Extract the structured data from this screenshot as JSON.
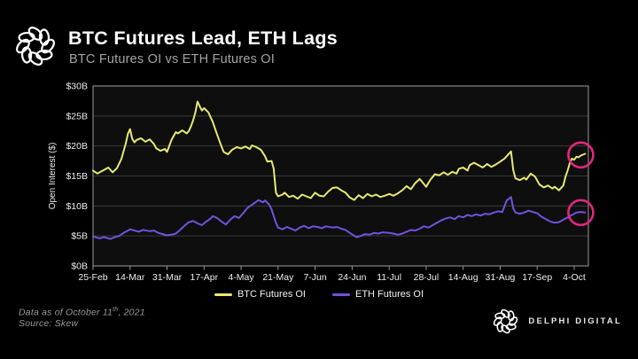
{
  "header": {
    "title": "BTC Futures Lead, ETH Lags",
    "subtitle": "BTC Futures OI vs ETH Futures OI"
  },
  "footer": {
    "note_prefix": "Data as of October 11",
    "note_superscript": "th",
    "note_suffix": ", 2021",
    "source": "Source: Skew",
    "brand": "DELPHI DIGITAL"
  },
  "colors": {
    "background": "#000000",
    "plot_background": "#0e0e0e",
    "grid": "#3a3a3a",
    "axis_border": "#9e9e9e",
    "axis_text": "#ededed",
    "btc_line": "#eae870",
    "eth_line": "#7452dd",
    "highlight_circle": "#e3277d",
    "title_text": "#ffffff",
    "subtitle_text": "#a3a3a3",
    "footnote_text": "#999999"
  },
  "chart_data": {
    "type": "line",
    "title": "BTC Futures OI vs ETH Futures OI",
    "xlabel": "",
    "ylabel": "Open Interest ($)",
    "unit": "$ billions",
    "ylim": [
      0,
      30
    ],
    "ytick_values": [
      0,
      5,
      10,
      15,
      20,
      25,
      30
    ],
    "ytick_labels": [
      "$0B",
      "$5B",
      "$10B",
      "$15B",
      "$20B",
      "$25B",
      "$30B"
    ],
    "xtick_labels": [
      "25-Feb",
      "14-Mar",
      "31-Mar",
      "17-Apr",
      "4-May",
      "21-May",
      "7-Jun",
      "24-Jun",
      "11-Jul",
      "28-Jul",
      "14-Aug",
      "31-Aug",
      "17-Sep",
      "4-Oct"
    ],
    "xtick_days": [
      0,
      17,
      34,
      51,
      68,
      85,
      102,
      119,
      136,
      153,
      170,
      187,
      204,
      221
    ],
    "x_domain_days": [
      0,
      226
    ],
    "grid": "horizontal",
    "legend_position": "bottom",
    "series": [
      {
        "name": "BTC Futures OI",
        "color": "#eae870",
        "points": [
          [
            0,
            15.9
          ],
          [
            2,
            15.4
          ],
          [
            3,
            15.6
          ],
          [
            5,
            16.0
          ],
          [
            7,
            16.4
          ],
          [
            9,
            15.6
          ],
          [
            11,
            16.3
          ],
          [
            13,
            17.8
          ],
          [
            15,
            20.4
          ],
          [
            16,
            22.0
          ],
          [
            17,
            22.8
          ],
          [
            18,
            21.2
          ],
          [
            19,
            20.6
          ],
          [
            20,
            21.0
          ],
          [
            22,
            21.3
          ],
          [
            24,
            20.7
          ],
          [
            26,
            21.1
          ],
          [
            28,
            20.3
          ],
          [
            29,
            19.6
          ],
          [
            31,
            19.2
          ],
          [
            33,
            19.5
          ],
          [
            34,
            19.0
          ],
          [
            36,
            21.0
          ],
          [
            38,
            22.3
          ],
          [
            39,
            22.1
          ],
          [
            41,
            22.6
          ],
          [
            43,
            22.1
          ],
          [
            44,
            22.5
          ],
          [
            45,
            23.3
          ],
          [
            46,
            24.3
          ],
          [
            47,
            25.6
          ],
          [
            48,
            27.4
          ],
          [
            49,
            26.6
          ],
          [
            50,
            25.9
          ],
          [
            51,
            26.3
          ],
          [
            53,
            25.6
          ],
          [
            55,
            24.0
          ],
          [
            57,
            21.9
          ],
          [
            59,
            19.9
          ],
          [
            60,
            19.0
          ],
          [
            62,
            18.6
          ],
          [
            64,
            19.4
          ],
          [
            66,
            19.8
          ],
          [
            68,
            19.6
          ],
          [
            70,
            19.9
          ],
          [
            72,
            19.5
          ],
          [
            73,
            20.1
          ],
          [
            75,
            19.8
          ],
          [
            77,
            19.4
          ],
          [
            79,
            18.3
          ],
          [
            80,
            17.4
          ],
          [
            82,
            17.5
          ],
          [
            83,
            16.2
          ],
          [
            84,
            12.2
          ],
          [
            85,
            11.6
          ],
          [
            87,
            11.9
          ],
          [
            88,
            12.2
          ],
          [
            90,
            11.5
          ],
          [
            92,
            11.7
          ],
          [
            94,
            11.2
          ],
          [
            96,
            11.9
          ],
          [
            98,
            11.6
          ],
          [
            100,
            11.3
          ],
          [
            102,
            12.2
          ],
          [
            104,
            11.7
          ],
          [
            106,
            11.6
          ],
          [
            108,
            12.4
          ],
          [
            110,
            13.0
          ],
          [
            112,
            13.1
          ],
          [
            114,
            12.6
          ],
          [
            116,
            12.2
          ],
          [
            118,
            11.4
          ],
          [
            120,
            11.0
          ],
          [
            122,
            11.8
          ],
          [
            124,
            11.3
          ],
          [
            126,
            12.0
          ],
          [
            128,
            11.6
          ],
          [
            130,
            11.9
          ],
          [
            132,
            11.5
          ],
          [
            134,
            11.7
          ],
          [
            136,
            12.0
          ],
          [
            138,
            11.7
          ],
          [
            140,
            12.1
          ],
          [
            142,
            12.6
          ],
          [
            144,
            13.3
          ],
          [
            146,
            12.8
          ],
          [
            148,
            13.8
          ],
          [
            150,
            14.5
          ],
          [
            151,
            14.1
          ],
          [
            153,
            13.2
          ],
          [
            155,
            14.4
          ],
          [
            157,
            15.3
          ],
          [
            159,
            15.1
          ],
          [
            161,
            15.6
          ],
          [
            163,
            15.2
          ],
          [
            165,
            15.7
          ],
          [
            167,
            15.4
          ],
          [
            168,
            16.2
          ],
          [
            170,
            16.4
          ],
          [
            172,
            15.9
          ],
          [
            173,
            16.8
          ],
          [
            175,
            17.2
          ],
          [
            177,
            16.8
          ],
          [
            179,
            16.4
          ],
          [
            181,
            17.0
          ],
          [
            183,
            16.5
          ],
          [
            185,
            16.9
          ],
          [
            187,
            17.4
          ],
          [
            189,
            17.9
          ],
          [
            190,
            18.3
          ],
          [
            192,
            19.1
          ],
          [
            193,
            16.0
          ],
          [
            194,
            14.6
          ],
          [
            196,
            14.3
          ],
          [
            198,
            14.7
          ],
          [
            199,
            14.4
          ],
          [
            201,
            15.4
          ],
          [
            203,
            14.9
          ],
          [
            205,
            13.6
          ],
          [
            207,
            13.1
          ],
          [
            209,
            13.4
          ],
          [
            211,
            12.9
          ],
          [
            212,
            13.2
          ],
          [
            214,
            12.6
          ],
          [
            216,
            13.4
          ],
          [
            217,
            14.9
          ],
          [
            218,
            15.9
          ],
          [
            219,
            17.2
          ],
          [
            220,
            17.9
          ],
          [
            221,
            17.7
          ],
          [
            222,
            18.2
          ],
          [
            223,
            18.1
          ],
          [
            224,
            18.4
          ],
          [
            226,
            18.7
          ]
        ]
      },
      {
        "name": "ETH Futures OI",
        "color": "#7452dd",
        "points": [
          [
            0,
            4.9
          ],
          [
            2,
            4.7
          ],
          [
            3,
            4.6
          ],
          [
            5,
            4.8
          ],
          [
            8,
            4.5
          ],
          [
            10,
            4.8
          ],
          [
            12,
            5.0
          ],
          [
            14,
            5.5
          ],
          [
            16,
            5.9
          ],
          [
            17,
            6.1
          ],
          [
            19,
            5.9
          ],
          [
            21,
            5.7
          ],
          [
            23,
            6.0
          ],
          [
            26,
            5.8
          ],
          [
            28,
            5.9
          ],
          [
            30,
            5.5
          ],
          [
            32,
            5.3
          ],
          [
            34,
            5.1
          ],
          [
            36,
            5.2
          ],
          [
            38,
            5.4
          ],
          [
            40,
            6.0
          ],
          [
            42,
            6.7
          ],
          [
            44,
            7.3
          ],
          [
            46,
            7.5
          ],
          [
            48,
            7.1
          ],
          [
            50,
            6.8
          ],
          [
            52,
            7.4
          ],
          [
            54,
            7.9
          ],
          [
            55,
            8.3
          ],
          [
            57,
            8.0
          ],
          [
            59,
            7.4
          ],
          [
            61,
            6.9
          ],
          [
            63,
            7.7
          ],
          [
            65,
            8.3
          ],
          [
            67,
            8.0
          ],
          [
            69,
            8.8
          ],
          [
            71,
            9.7
          ],
          [
            73,
            10.2
          ],
          [
            75,
            10.7
          ],
          [
            76,
            11.0
          ],
          [
            78,
            10.6
          ],
          [
            79,
            10.9
          ],
          [
            81,
            10.2
          ],
          [
            82,
            9.4
          ],
          [
            84,
            7.2
          ],
          [
            85,
            6.4
          ],
          [
            87,
            6.1
          ],
          [
            89,
            6.5
          ],
          [
            91,
            6.2
          ],
          [
            93,
            5.9
          ],
          [
            95,
            6.4
          ],
          [
            97,
            6.7
          ],
          [
            99,
            6.3
          ],
          [
            101,
            6.6
          ],
          [
            103,
            6.5
          ],
          [
            105,
            6.3
          ],
          [
            107,
            6.6
          ],
          [
            110,
            6.4
          ],
          [
            112,
            6.5
          ],
          [
            114,
            6.2
          ],
          [
            116,
            6.0
          ],
          [
            118,
            5.5
          ],
          [
            121,
            4.8
          ],
          [
            123,
            5.0
          ],
          [
            125,
            5.3
          ],
          [
            127,
            5.2
          ],
          [
            129,
            5.5
          ],
          [
            131,
            5.4
          ],
          [
            133,
            5.6
          ],
          [
            136,
            5.5
          ],
          [
            138,
            5.4
          ],
          [
            140,
            5.2
          ],
          [
            142,
            5.4
          ],
          [
            144,
            5.7
          ],
          [
            146,
            6.0
          ],
          [
            148,
            5.9
          ],
          [
            150,
            6.2
          ],
          [
            152,
            6.6
          ],
          [
            154,
            6.4
          ],
          [
            156,
            6.8
          ],
          [
            158,
            7.2
          ],
          [
            160,
            7.6
          ],
          [
            162,
            7.9
          ],
          [
            164,
            8.1
          ],
          [
            166,
            7.8
          ],
          [
            168,
            8.3
          ],
          [
            170,
            8.1
          ],
          [
            172,
            8.5
          ],
          [
            174,
            8.3
          ],
          [
            176,
            8.6
          ],
          [
            178,
            8.4
          ],
          [
            180,
            8.7
          ],
          [
            182,
            8.6
          ],
          [
            184,
            8.9
          ],
          [
            186,
            9.1
          ],
          [
            188,
            9.0
          ],
          [
            190,
            10.9
          ],
          [
            192,
            11.5
          ],
          [
            193,
            9.6
          ],
          [
            194,
            8.9
          ],
          [
            196,
            8.7
          ],
          [
            198,
            8.9
          ],
          [
            200,
            9.2
          ],
          [
            202,
            9.0
          ],
          [
            204,
            8.8
          ],
          [
            206,
            8.2
          ],
          [
            208,
            7.8
          ],
          [
            210,
            7.4
          ],
          [
            212,
            7.2
          ],
          [
            214,
            7.3
          ],
          [
            216,
            7.7
          ],
          [
            218,
            8.1
          ],
          [
            220,
            8.5
          ],
          [
            222,
            8.9
          ],
          [
            224,
            9.0
          ],
          [
            226,
            8.9
          ]
        ]
      }
    ],
    "annotations": [
      {
        "label": "btc-endpoint-highlight",
        "day": 224,
        "value": 18.5,
        "radius_px": 14
      },
      {
        "label": "eth-endpoint-highlight",
        "day": 224,
        "value": 8.9,
        "radius_px": 14
      }
    ]
  }
}
